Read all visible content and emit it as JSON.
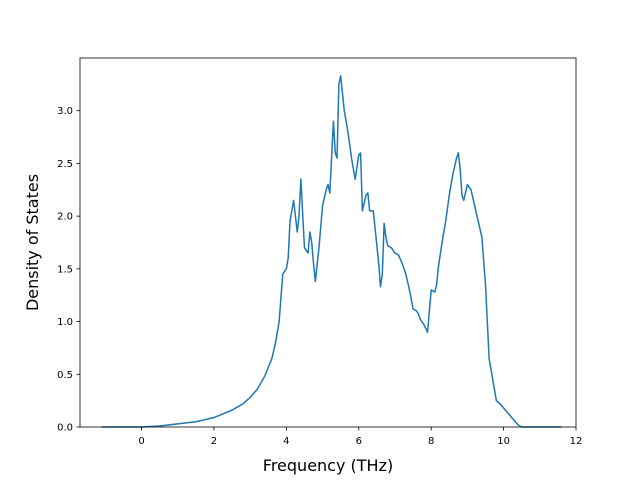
{
  "chart_data": {
    "type": "line",
    "title": "",
    "xlabel": "Frequency (THz)",
    "ylabel": "Density of States",
    "xlim": [
      -1.7,
      12.0
    ],
    "ylim": [
      0.0,
      3.5
    ],
    "x_ticks": [
      "0",
      "2",
      "4",
      "6",
      "8",
      "10",
      "12"
    ],
    "y_ticks": [
      "0.0",
      "0.5",
      "1.0",
      "1.5",
      "2.0",
      "2.5",
      "3.0"
    ],
    "x_tick_values": [
      0,
      2,
      4,
      6,
      8,
      10,
      12
    ],
    "y_tick_values": [
      0.0,
      0.5,
      1.0,
      1.5,
      2.0,
      2.5,
      3.0
    ],
    "grid": false,
    "color": "#1f77b4",
    "series": [
      {
        "x": [
          -1.1,
          0.0,
          0.5,
          1.0,
          1.5,
          2.0,
          2.5,
          2.8,
          3.0,
          3.2,
          3.4,
          3.6,
          3.7,
          3.8,
          3.9,
          4.0,
          4.05,
          4.1,
          4.2,
          4.25,
          4.3,
          4.35,
          4.4,
          4.5,
          4.6,
          4.65,
          4.7,
          4.75,
          4.8,
          4.9,
          4.95,
          5.0,
          5.1,
          5.15,
          5.2,
          5.3,
          5.35,
          5.4,
          5.45,
          5.5,
          5.6,
          5.7,
          5.8,
          5.85,
          5.9,
          6.0,
          6.05,
          6.1,
          6.2,
          6.25,
          6.3,
          6.4,
          6.5,
          6.55,
          6.6,
          6.65,
          6.7,
          6.75,
          6.8,
          6.9,
          7.0,
          7.1,
          7.2,
          7.3,
          7.4,
          7.5,
          7.6,
          7.65,
          7.7,
          7.8,
          7.9,
          8.0,
          8.1,
          8.15,
          8.2,
          8.3,
          8.4,
          8.5,
          8.6,
          8.7,
          8.75,
          8.8,
          8.85,
          8.9,
          9.0,
          9.1,
          9.2,
          9.3,
          9.4,
          9.5,
          9.6,
          9.7,
          9.8,
          9.9,
          10.0,
          10.2,
          10.4,
          10.5,
          10.7,
          11.6
        ],
        "y": [
          0.0,
          0.0,
          0.01,
          0.03,
          0.05,
          0.09,
          0.16,
          0.22,
          0.28,
          0.36,
          0.48,
          0.65,
          0.8,
          1.0,
          1.45,
          1.5,
          1.6,
          1.95,
          2.15,
          2.0,
          1.85,
          2.0,
          2.35,
          1.7,
          1.65,
          1.85,
          1.75,
          1.55,
          1.38,
          1.7,
          1.9,
          2.1,
          2.25,
          2.3,
          2.22,
          2.9,
          2.6,
          2.55,
          3.25,
          3.33,
          3.0,
          2.8,
          2.55,
          2.45,
          2.35,
          2.58,
          2.6,
          2.05,
          2.2,
          2.22,
          2.05,
          2.05,
          1.72,
          1.55,
          1.33,
          1.45,
          1.93,
          1.8,
          1.72,
          1.7,
          1.65,
          1.63,
          1.55,
          1.45,
          1.3,
          1.12,
          1.1,
          1.07,
          1.02,
          0.97,
          0.9,
          1.3,
          1.28,
          1.35,
          1.52,
          1.75,
          1.95,
          2.2,
          2.4,
          2.55,
          2.6,
          2.45,
          2.2,
          2.15,
          2.3,
          2.25,
          2.1,
          1.95,
          1.8,
          1.35,
          0.65,
          0.45,
          0.25,
          0.22,
          0.18,
          0.1,
          0.02,
          0.0,
          0.0,
          0.0
        ]
      }
    ]
  }
}
